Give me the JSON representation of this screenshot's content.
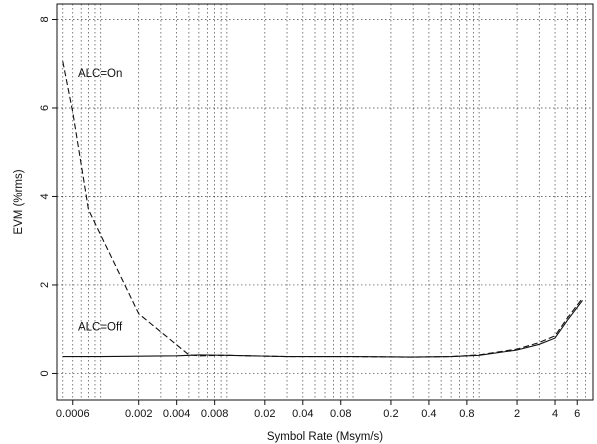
{
  "chart_data": {
    "type": "line",
    "title": "",
    "xlabel": "Symbol Rate (Msym/s)",
    "ylabel": "EVM (%rms)",
    "x_scale": "log",
    "xlim": [
      0.00045,
      8.0
    ],
    "ylim": [
      -0.6,
      8.35
    ],
    "x_ticks": [
      0.0006,
      0.002,
      0.004,
      0.008,
      0.02,
      0.04,
      0.08,
      0.2,
      0.4,
      0.8,
      2,
      4,
      6
    ],
    "x_tick_labels": [
      "0.0006",
      "0.002",
      "0.004",
      "0.008",
      "0.02",
      "0.04",
      "0.08",
      "0.2",
      "0.4",
      "0.8",
      "2",
      "4",
      "6"
    ],
    "x_minor_grid": [
      0.0005,
      0.0007,
      0.0008,
      0.0009,
      0.001,
      0.003,
      0.005,
      0.006,
      0.007,
      0.009,
      0.01,
      0.03,
      0.05,
      0.06,
      0.07,
      0.09,
      0.1,
      0.3,
      0.5,
      0.6,
      0.7,
      0.9,
      1,
      3,
      5,
      7
    ],
    "y_ticks": [
      0,
      2,
      4,
      6,
      8
    ],
    "y_tick_labels": [
      "0",
      "2",
      "4",
      "6",
      "8"
    ],
    "grid": true,
    "legend": "none",
    "series": [
      {
        "style": "dashed",
        "x": [
          0.0005,
          0.0006,
          0.0008,
          0.002,
          0.005,
          0.006,
          0.01,
          0.03,
          0.1,
          0.3,
          0.6,
          1,
          2,
          3,
          4,
          5,
          6.6
        ],
        "y": [
          7.05,
          5.9,
          3.7,
          1.35,
          0.42,
          0.4,
          0.41,
          0.38,
          0.38,
          0.37,
          0.38,
          0.42,
          0.55,
          0.7,
          0.85,
          1.25,
          1.7
        ]
      },
      {
        "style": "solid",
        "x": [
          0.0005,
          0.001,
          0.002,
          0.004,
          0.006,
          0.01,
          0.03,
          0.1,
          0.3,
          0.6,
          1,
          2,
          3,
          4,
          5,
          6.6
        ],
        "y": [
          0.38,
          0.38,
          0.39,
          0.4,
          0.42,
          0.41,
          0.38,
          0.38,
          0.37,
          0.38,
          0.41,
          0.53,
          0.66,
          0.8,
          1.2,
          1.65
        ]
      }
    ],
    "annotations": [
      {
        "text": "ALC=On",
        "x": 0.00066,
        "y": 6.7
      },
      {
        "text": "ALC=Off",
        "x": 0.00066,
        "y": 0.97
      }
    ]
  }
}
